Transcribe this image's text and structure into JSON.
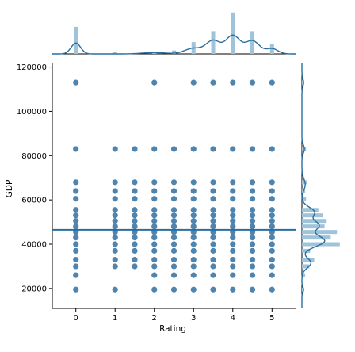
{
  "chart_data": {
    "type": "scatter",
    "title": "",
    "xlabel": "Rating",
    "ylabel": "GDP",
    "xlim": [
      -0.6,
      5.6
    ],
    "ylim": [
      11000,
      122000
    ],
    "xticks": [
      0,
      1,
      2,
      3,
      4,
      5
    ],
    "yticks": [
      20000,
      40000,
      60000,
      80000,
      100000,
      120000
    ],
    "grid": false,
    "style": {
      "point_color": "#2f6f9f",
      "line_color": "#2a6ea0",
      "hist_color": "#9fc4da",
      "axis_color": "#000000"
    },
    "x_levels": [
      0,
      1,
      1.5,
      2,
      2.5,
      3,
      3.5,
      4,
      4.5,
      5
    ],
    "gdp_levels": [
      19500,
      26000,
      30000,
      33000,
      37000,
      40000,
      43000,
      45500,
      48000,
      50500,
      53000,
      55500,
      60500,
      64000,
      68000,
      83000,
      113000
    ],
    "points_by_rating": [
      {
        "x": 0,
        "y": [
          19500,
          26000,
          30000,
          33000,
          37000,
          40000,
          43000,
          45500,
          48000,
          50500,
          53000,
          55500,
          60500,
          64000,
          68000,
          83000,
          113000
        ]
      },
      {
        "x": 1,
        "y": [
          19500,
          30000,
          33000,
          37000,
          40000,
          43000,
          45500,
          48000,
          50500,
          53000,
          55500,
          60500,
          64000,
          68000,
          83000
        ]
      },
      {
        "x": 1.5,
        "y": [
          30000,
          33000,
          37000,
          40000,
          43000,
          45500,
          48000,
          50500,
          53000,
          55500,
          60500,
          64000,
          68000,
          83000
        ]
      },
      {
        "x": 2,
        "y": [
          19500,
          26000,
          30000,
          33000,
          37000,
          40000,
          43000,
          45500,
          48000,
          50500,
          53000,
          55500,
          60500,
          64000,
          68000,
          83000,
          113000
        ]
      },
      {
        "x": 2.5,
        "y": [
          19500,
          26000,
          30000,
          33000,
          37000,
          40000,
          43000,
          45500,
          48000,
          50500,
          53000,
          55500,
          60500,
          64000,
          68000,
          83000
        ]
      },
      {
        "x": 3,
        "y": [
          19500,
          26000,
          30000,
          33000,
          37000,
          40000,
          43000,
          45500,
          48000,
          50500,
          53000,
          55500,
          60500,
          64000,
          68000,
          83000,
          113000
        ]
      },
      {
        "x": 3.5,
        "y": [
          19500,
          26000,
          30000,
          33000,
          37000,
          40000,
          43000,
          45500,
          48000,
          50500,
          53000,
          55500,
          60500,
          64000,
          68000,
          83000,
          113000
        ]
      },
      {
        "x": 4,
        "y": [
          19500,
          26000,
          30000,
          33000,
          37000,
          40000,
          43000,
          45500,
          48000,
          50500,
          53000,
          55500,
          60500,
          64000,
          68000,
          83000,
          113000
        ]
      },
      {
        "x": 4.5,
        "y": [
          19500,
          26000,
          30000,
          33000,
          37000,
          40000,
          43000,
          45500,
          48000,
          50500,
          53000,
          55500,
          60500,
          64000,
          68000,
          83000,
          113000
        ]
      },
      {
        "x": 5,
        "y": [
          19500,
          26000,
          30000,
          33000,
          37000,
          40000,
          43000,
          45500,
          48000,
          50500,
          53000,
          55500,
          60500,
          64000,
          68000,
          83000,
          113000
        ]
      }
    ],
    "regression_line": {
      "slope": 0,
      "intercept": 46500
    },
    "marginal_x_hist": {
      "bins": [
        {
          "x": 0,
          "height": 0.62
        },
        {
          "x": 1,
          "height": 0.04
        },
        {
          "x": 2,
          "height": 0.04
        },
        {
          "x": 2.5,
          "height": 0.08
        },
        {
          "x": 3,
          "height": 0.27
        },
        {
          "x": 3.5,
          "height": 0.52
        },
        {
          "x": 4,
          "height": 0.95
        },
        {
          "x": 4.5,
          "height": 0.52
        },
        {
          "x": 5,
          "height": 0.23
        }
      ],
      "kde_peaks": [
        {
          "center": 0,
          "height": 0.25,
          "width": 0.12
        },
        {
          "center": 2.0,
          "height": 0.03,
          "width": 0.3
        },
        {
          "center": 3.0,
          "height": 0.13,
          "width": 0.22
        },
        {
          "center": 3.5,
          "height": 0.3,
          "width": 0.18
        },
        {
          "center": 4.0,
          "height": 0.42,
          "width": 0.18
        },
        {
          "center": 4.5,
          "height": 0.3,
          "width": 0.18
        },
        {
          "center": 5.0,
          "height": 0.12,
          "width": 0.15
        }
      ]
    },
    "marginal_y_hist": {
      "bins": [
        {
          "y": 19500,
          "width": 0.05
        },
        {
          "y": 26000,
          "width": 0.08
        },
        {
          "y": 30000,
          "width": 0.18
        },
        {
          "y": 33000,
          "width": 0.3
        },
        {
          "y": 37000,
          "width": 0.2
        },
        {
          "y": 40000,
          "width": 0.92
        },
        {
          "y": 43000,
          "width": 0.7
        },
        {
          "y": 45500,
          "width": 0.85
        },
        {
          "y": 48000,
          "width": 0.55
        },
        {
          "y": 50500,
          "width": 0.6
        },
        {
          "y": 53000,
          "width": 0.5
        },
        {
          "y": 55500,
          "width": 0.4
        },
        {
          "y": 60500,
          "width": 0.1
        },
        {
          "y": 64000,
          "width": 0.08
        },
        {
          "y": 68000,
          "width": 0.12
        },
        {
          "y": 83000,
          "width": 0.1
        },
        {
          "y": 113000,
          "width": 0.05
        }
      ],
      "kde_peaks": [
        {
          "center": 19500,
          "height": 0.04,
          "width": 1200
        },
        {
          "center": 31500,
          "height": 0.22,
          "width": 2200
        },
        {
          "center": 41500,
          "height": 0.55,
          "width": 2600
        },
        {
          "center": 48500,
          "height": 0.4,
          "width": 2200
        },
        {
          "center": 54500,
          "height": 0.3,
          "width": 2200
        },
        {
          "center": 67000,
          "height": 0.08,
          "width": 2500
        },
        {
          "center": 83000,
          "height": 0.06,
          "width": 1800
        },
        {
          "center": 113000,
          "height": 0.04,
          "width": 1800
        }
      ]
    }
  }
}
